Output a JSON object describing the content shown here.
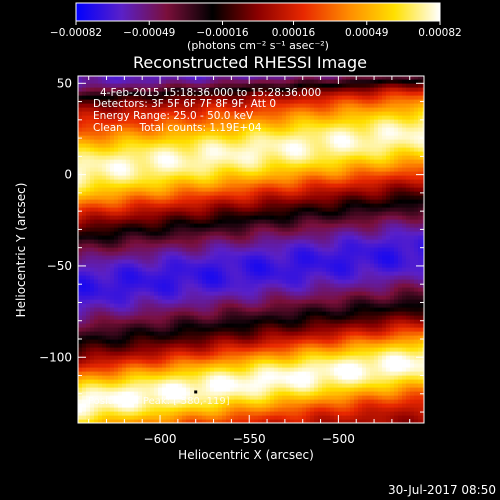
{
  "chart_data": {
    "type": "heatmap",
    "title": "Reconstructed RHESSI Image",
    "xlabel": "Heliocentric X (arcsec)",
    "ylabel": "Heliocentric Y (arcsec)",
    "xlim": [
      -646,
      -452
    ],
    "ylim": [
      -136,
      54
    ],
    "xticks": [
      -600,
      -550,
      -500
    ],
    "xtick_labels": [
      "−600",
      "−550",
      "−500"
    ],
    "yticks": [
      50,
      0,
      -50,
      -100
    ],
    "ytick_labels": [
      "50",
      "0",
      "−50",
      "−100"
    ],
    "colorbar": {
      "min": -0.00082,
      "max": 0.00082,
      "ticks": [
        -0.00082,
        -0.00049,
        -0.00016,
        0.00016,
        0.00049,
        0.00082
      ],
      "tick_labels": [
        "−0.00082",
        "−0.00049",
        "−0.00016",
        "0.00016",
        "0.00049",
        "0.00082"
      ],
      "units": "(photons cm⁻² s⁻¹ asec⁻²)",
      "colors": [
        "#0000ff",
        "#5a20c8",
        "#7a0f3a",
        "#000000",
        "#8c0000",
        "#e82800",
        "#ff8c00",
        "#ffe000",
        "#ffffff"
      ]
    },
    "bands": [
      {
        "description": "bright lower band",
        "center_y_at_xlim": [
          -125,
          -102
        ],
        "halfwidth": 18,
        "sign": 1,
        "peak": 0.00082
      },
      {
        "description": "negative dark band",
        "center_y_at_xlim": [
          -62,
          -42
        ],
        "halfwidth": 28,
        "sign": -1,
        "peak": -0.0007
      },
      {
        "description": "bright upper band",
        "center_y_at_xlim": [
          2,
          23
        ],
        "halfwidth": 22,
        "sign": 1,
        "peak": 0.00078
      },
      {
        "description": "negative upper band",
        "center_y_at_xlim": [
          52,
          60
        ],
        "halfwidth": 10,
        "sign": -1,
        "peak": -0.0006
      }
    ],
    "peak_marker": {
      "x": -580,
      "y": -119
    }
  },
  "annotations": {
    "time_range": "4-Feb-2015 15:18:36.000 to 15:28:36.000",
    "detectors": "Detectors: 3F 5F 6F 7F 8F 9F, Att 0",
    "energy": "Energy Range: 25.0 - 50.0 keV",
    "clean": "Clean     Total counts: 1.19E+04",
    "peak": "Position of Peak: [-580,-119]"
  },
  "footer": {
    "date": "30-Jul-2017 08:50"
  }
}
